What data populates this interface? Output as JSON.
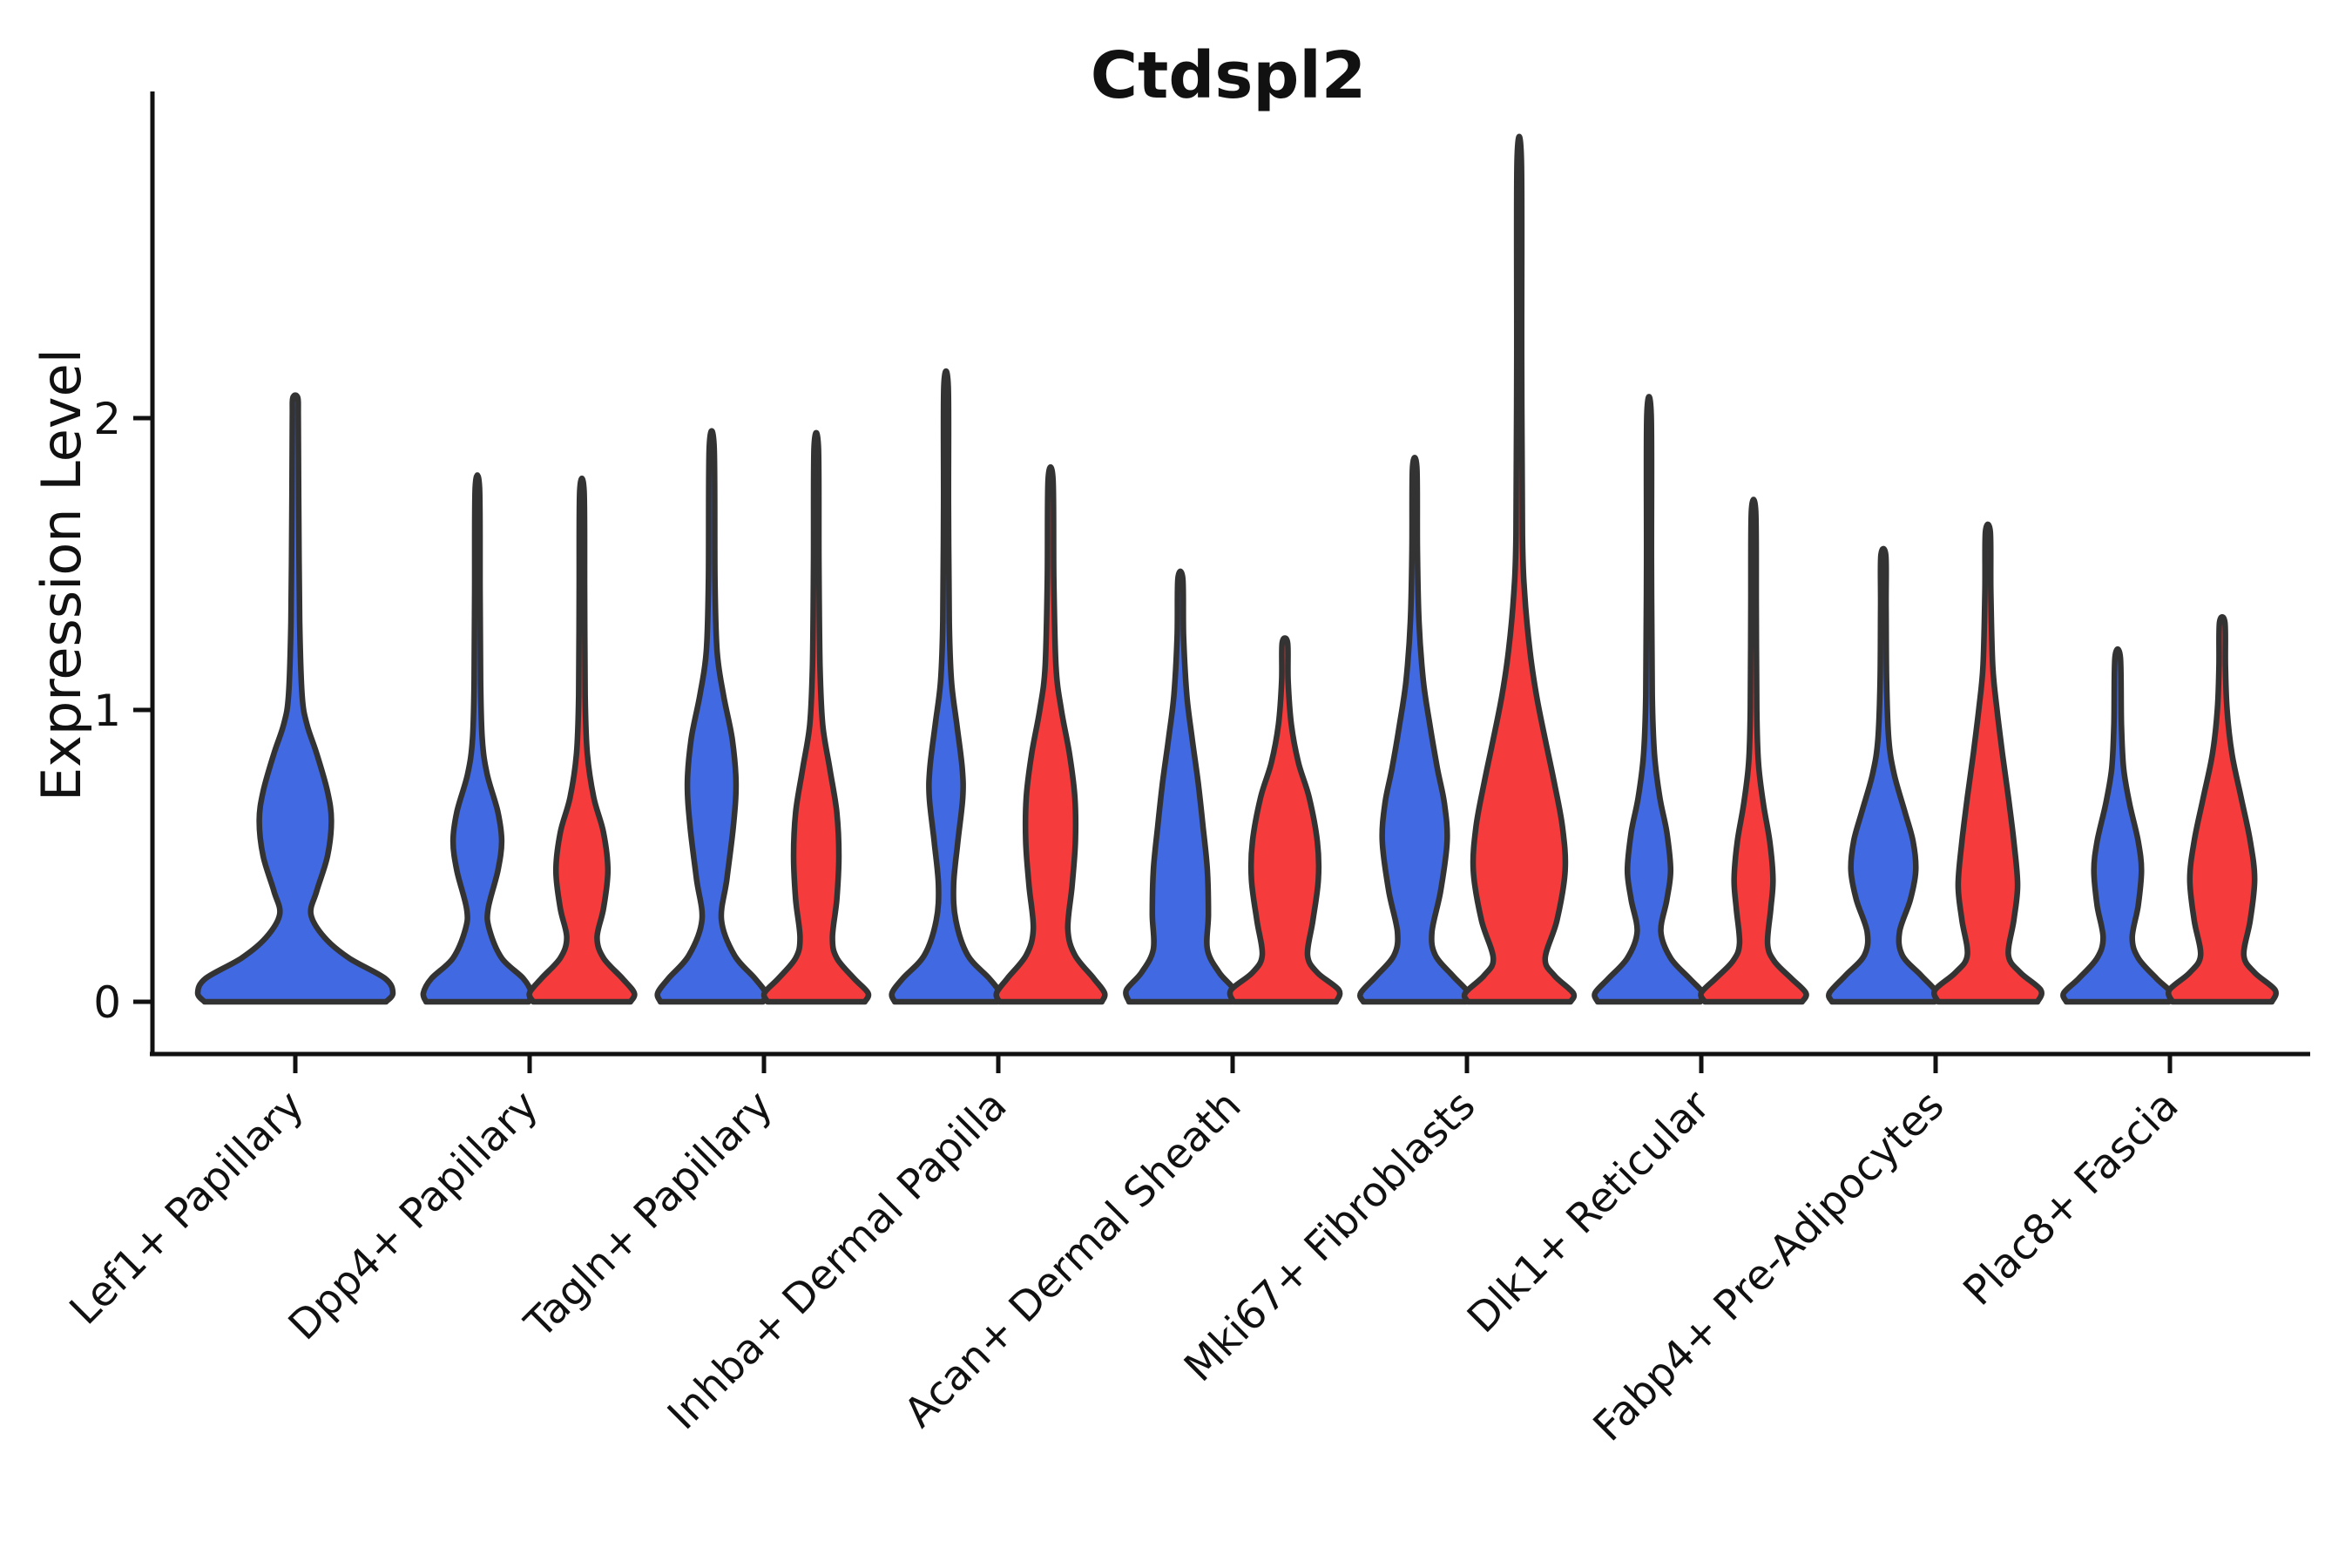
{
  "title": "Ctdspl2",
  "ylabel": "Expression Level",
  "colors": {
    "group_blue": "#4169E1",
    "group_red": "#F53B3B",
    "violin_edge": "#333333",
    "axis": "#111111",
    "background": "#ffffff"
  },
  "chart_data": {
    "type": "violin",
    "title": "Ctdspl2",
    "xlabel": "",
    "ylabel": "Expression Level",
    "ylim": [
      -0.18,
      3.12
    ],
    "yticks": [
      0,
      1,
      2
    ],
    "ytick_labels": [
      "0",
      "1",
      "2"
    ],
    "grid": false,
    "legend": "none",
    "categories": [
      "Lef1+ Papillary",
      "Dpp4+ Papillary",
      "Tagln+ Papillary",
      "Inhba+ Dermal Papilla",
      "Acan+ Dermal Sheath",
      "Mki67+ Fibroblasts",
      "Dlk1+ Reticular",
      "Fabp4+ Pre-Adipocytes",
      "Plac8+ Fascia"
    ],
    "series": [
      {
        "name": "blue-group",
        "color": "#4169E1",
        "max_expression": [
          2.07,
          1.76,
          1.9,
          2.11,
          1.45,
          1.83,
          2.01,
          1.53,
          1.18
        ]
      },
      {
        "name": "red-group",
        "color": "#F53B3B",
        "max_expression": [
          null,
          1.75,
          1.9,
          1.79,
          1.23,
          2.88,
          1.68,
          1.61,
          1.3
        ]
      }
    ],
    "violins": [
      {
        "cat": 0,
        "side": "center",
        "group": "blue",
        "max": 2.07,
        "profile": [
          [
            0,
            0.93
          ],
          [
            0.03,
            1.0
          ],
          [
            0.08,
            0.92
          ],
          [
            0.15,
            0.55
          ],
          [
            0.22,
            0.3
          ],
          [
            0.3,
            0.16
          ],
          [
            0.38,
            0.22
          ],
          [
            0.5,
            0.33
          ],
          [
            0.62,
            0.37
          ],
          [
            0.72,
            0.33
          ],
          [
            0.85,
            0.22
          ],
          [
            0.95,
            0.12
          ],
          [
            1.05,
            0.07
          ],
          [
            1.3,
            0.045
          ],
          [
            1.7,
            0.035
          ],
          [
            2.0,
            0.03
          ],
          [
            2.07,
            0.025
          ]
        ]
      },
      {
        "cat": 1,
        "side": "left",
        "group": "blue",
        "max": 1.76,
        "profile": [
          [
            0,
            0.95
          ],
          [
            0.03,
            1.0
          ],
          [
            0.08,
            0.85
          ],
          [
            0.15,
            0.45
          ],
          [
            0.25,
            0.22
          ],
          [
            0.32,
            0.2
          ],
          [
            0.45,
            0.38
          ],
          [
            0.55,
            0.45
          ],
          [
            0.65,
            0.38
          ],
          [
            0.78,
            0.18
          ],
          [
            0.9,
            0.09
          ],
          [
            1.1,
            0.06
          ],
          [
            1.4,
            0.05
          ],
          [
            1.76,
            0.04
          ]
        ]
      },
      {
        "cat": 1,
        "side": "right",
        "group": "red",
        "max": 1.75,
        "profile": [
          [
            0,
            0.9
          ],
          [
            0.03,
            0.97
          ],
          [
            0.08,
            0.75
          ],
          [
            0.15,
            0.4
          ],
          [
            0.22,
            0.28
          ],
          [
            0.32,
            0.4
          ],
          [
            0.45,
            0.48
          ],
          [
            0.58,
            0.4
          ],
          [
            0.7,
            0.22
          ],
          [
            0.85,
            0.1
          ],
          [
            1.05,
            0.06
          ],
          [
            1.4,
            0.05
          ],
          [
            1.75,
            0.04
          ]
        ]
      },
      {
        "cat": 2,
        "side": "left",
        "group": "blue",
        "max": 1.9,
        "profile": [
          [
            0,
            0.95
          ],
          [
            0.03,
            1.0
          ],
          [
            0.08,
            0.8
          ],
          [
            0.16,
            0.42
          ],
          [
            0.28,
            0.18
          ],
          [
            0.42,
            0.28
          ],
          [
            0.6,
            0.4
          ],
          [
            0.75,
            0.45
          ],
          [
            0.9,
            0.38
          ],
          [
            1.05,
            0.22
          ],
          [
            1.2,
            0.1
          ],
          [
            1.45,
            0.06
          ],
          [
            1.9,
            0.045
          ]
        ]
      },
      {
        "cat": 2,
        "side": "right",
        "group": "red",
        "max": 1.9,
        "profile": [
          [
            0,
            0.9
          ],
          [
            0.03,
            0.96
          ],
          [
            0.08,
            0.7
          ],
          [
            0.15,
            0.38
          ],
          [
            0.22,
            0.3
          ],
          [
            0.35,
            0.38
          ],
          [
            0.5,
            0.42
          ],
          [
            0.65,
            0.38
          ],
          [
            0.8,
            0.25
          ],
          [
            0.95,
            0.12
          ],
          [
            1.15,
            0.07
          ],
          [
            1.5,
            0.05
          ],
          [
            1.9,
            0.04
          ]
        ]
      },
      {
        "cat": 3,
        "side": "left",
        "group": "blue",
        "max": 2.11,
        "profile": [
          [
            0,
            0.95
          ],
          [
            0.03,
            1.0
          ],
          [
            0.08,
            0.8
          ],
          [
            0.16,
            0.4
          ],
          [
            0.28,
            0.18
          ],
          [
            0.4,
            0.14
          ],
          [
            0.55,
            0.22
          ],
          [
            0.7,
            0.31
          ],
          [
            0.8,
            0.3
          ],
          [
            0.95,
            0.2
          ],
          [
            1.1,
            0.1
          ],
          [
            1.3,
            0.06
          ],
          [
            1.7,
            0.045
          ],
          [
            2.11,
            0.04
          ]
        ]
      },
      {
        "cat": 3,
        "side": "right",
        "group": "red",
        "max": 1.79,
        "profile": [
          [
            0,
            0.95
          ],
          [
            0.03,
            1.0
          ],
          [
            0.08,
            0.8
          ],
          [
            0.16,
            0.45
          ],
          [
            0.25,
            0.32
          ],
          [
            0.4,
            0.4
          ],
          [
            0.55,
            0.46
          ],
          [
            0.7,
            0.45
          ],
          [
            0.85,
            0.35
          ],
          [
            1.0,
            0.2
          ],
          [
            1.15,
            0.1
          ],
          [
            1.45,
            0.06
          ],
          [
            1.79,
            0.045
          ]
        ]
      },
      {
        "cat": 4,
        "side": "left",
        "group": "blue",
        "max": 1.45,
        "profile": [
          [
            0,
            0.95
          ],
          [
            0.04,
            1.0
          ],
          [
            0.1,
            0.72
          ],
          [
            0.18,
            0.5
          ],
          [
            0.3,
            0.52
          ],
          [
            0.45,
            0.5
          ],
          [
            0.6,
            0.42
          ],
          [
            0.75,
            0.33
          ],
          [
            0.9,
            0.22
          ],
          [
            1.05,
            0.12
          ],
          [
            1.25,
            0.06
          ],
          [
            1.45,
            0.045
          ]
        ]
      },
      {
        "cat": 4,
        "side": "right",
        "group": "red",
        "max": 1.23,
        "profile": [
          [
            0,
            0.95
          ],
          [
            0.04,
            1.0
          ],
          [
            0.1,
            0.6
          ],
          [
            0.16,
            0.42
          ],
          [
            0.28,
            0.52
          ],
          [
            0.42,
            0.62
          ],
          [
            0.55,
            0.6
          ],
          [
            0.7,
            0.45
          ],
          [
            0.82,
            0.25
          ],
          [
            0.95,
            0.12
          ],
          [
            1.1,
            0.06
          ],
          [
            1.23,
            0.05
          ]
        ]
      },
      {
        "cat": 5,
        "side": "left",
        "group": "blue",
        "max": 1.83,
        "profile": [
          [
            0,
            0.95
          ],
          [
            0.03,
            1.0
          ],
          [
            0.09,
            0.7
          ],
          [
            0.16,
            0.38
          ],
          [
            0.24,
            0.32
          ],
          [
            0.38,
            0.48
          ],
          [
            0.55,
            0.6
          ],
          [
            0.68,
            0.55
          ],
          [
            0.8,
            0.42
          ],
          [
            0.95,
            0.28
          ],
          [
            1.1,
            0.16
          ],
          [
            1.3,
            0.08
          ],
          [
            1.55,
            0.05
          ],
          [
            1.83,
            0.04
          ]
        ]
      },
      {
        "cat": 5,
        "side": "right",
        "group": "red",
        "max": 2.88,
        "profile": [
          [
            0,
            0.95
          ],
          [
            0.03,
            1.0
          ],
          [
            0.09,
            0.65
          ],
          [
            0.15,
            0.48
          ],
          [
            0.28,
            0.7
          ],
          [
            0.45,
            0.85
          ],
          [
            0.6,
            0.8
          ],
          [
            0.75,
            0.65
          ],
          [
            0.9,
            0.48
          ],
          [
            1.05,
            0.32
          ],
          [
            1.2,
            0.2
          ],
          [
            1.4,
            0.1
          ],
          [
            1.6,
            0.06
          ],
          [
            2.2,
            0.045
          ],
          [
            2.88,
            0.04
          ]
        ]
      },
      {
        "cat": 6,
        "side": "left",
        "group": "blue",
        "max": 2.01,
        "profile": [
          [
            0,
            0.95
          ],
          [
            0.03,
            1.0
          ],
          [
            0.08,
            0.75
          ],
          [
            0.15,
            0.4
          ],
          [
            0.24,
            0.22
          ],
          [
            0.35,
            0.33
          ],
          [
            0.45,
            0.4
          ],
          [
            0.58,
            0.33
          ],
          [
            0.7,
            0.2
          ],
          [
            0.85,
            0.1
          ],
          [
            1.05,
            0.06
          ],
          [
            1.5,
            0.045
          ],
          [
            2.01,
            0.04
          ]
        ]
      },
      {
        "cat": 6,
        "side": "right",
        "group": "red",
        "max": 1.68,
        "profile": [
          [
            0,
            0.9
          ],
          [
            0.03,
            0.97
          ],
          [
            0.08,
            0.7
          ],
          [
            0.14,
            0.38
          ],
          [
            0.2,
            0.26
          ],
          [
            0.32,
            0.32
          ],
          [
            0.42,
            0.36
          ],
          [
            0.55,
            0.3
          ],
          [
            0.68,
            0.18
          ],
          [
            0.82,
            0.09
          ],
          [
            1.0,
            0.06
          ],
          [
            1.35,
            0.05
          ],
          [
            1.68,
            0.04
          ]
        ]
      },
      {
        "cat": 7,
        "side": "left",
        "group": "blue",
        "max": 1.53,
        "profile": [
          [
            0,
            0.95
          ],
          [
            0.03,
            1.0
          ],
          [
            0.09,
            0.7
          ],
          [
            0.16,
            0.35
          ],
          [
            0.24,
            0.3
          ],
          [
            0.35,
            0.5
          ],
          [
            0.45,
            0.6
          ],
          [
            0.55,
            0.55
          ],
          [
            0.65,
            0.4
          ],
          [
            0.78,
            0.2
          ],
          [
            0.9,
            0.1
          ],
          [
            1.1,
            0.06
          ],
          [
            1.35,
            0.05
          ],
          [
            1.53,
            0.045
          ]
        ]
      },
      {
        "cat": 7,
        "side": "right",
        "group": "red",
        "max": 1.61,
        "profile": [
          [
            0,
            0.92
          ],
          [
            0.04,
            0.98
          ],
          [
            0.1,
            0.6
          ],
          [
            0.16,
            0.38
          ],
          [
            0.28,
            0.48
          ],
          [
            0.4,
            0.55
          ],
          [
            0.55,
            0.48
          ],
          [
            0.7,
            0.38
          ],
          [
            0.85,
            0.27
          ],
          [
            1.0,
            0.17
          ],
          [
            1.15,
            0.09
          ],
          [
            1.4,
            0.055
          ],
          [
            1.61,
            0.045
          ]
        ]
      },
      {
        "cat": 8,
        "side": "left",
        "group": "blue",
        "max": 1.18,
        "profile": [
          [
            0,
            0.95
          ],
          [
            0.03,
            1.0
          ],
          [
            0.08,
            0.72
          ],
          [
            0.15,
            0.38
          ],
          [
            0.22,
            0.27
          ],
          [
            0.33,
            0.38
          ],
          [
            0.45,
            0.44
          ],
          [
            0.55,
            0.38
          ],
          [
            0.68,
            0.22
          ],
          [
            0.8,
            0.11
          ],
          [
            0.95,
            0.07
          ],
          [
            1.18,
            0.05
          ]
        ]
      },
      {
        "cat": 8,
        "side": "right",
        "group": "red",
        "max": 1.3,
        "profile": [
          [
            0,
            0.92
          ],
          [
            0.04,
            0.98
          ],
          [
            0.1,
            0.6
          ],
          [
            0.16,
            0.4
          ],
          [
            0.28,
            0.52
          ],
          [
            0.42,
            0.6
          ],
          [
            0.55,
            0.52
          ],
          [
            0.7,
            0.35
          ],
          [
            0.85,
            0.18
          ],
          [
            1.0,
            0.09
          ],
          [
            1.15,
            0.06
          ],
          [
            1.3,
            0.05
          ]
        ]
      }
    ]
  }
}
